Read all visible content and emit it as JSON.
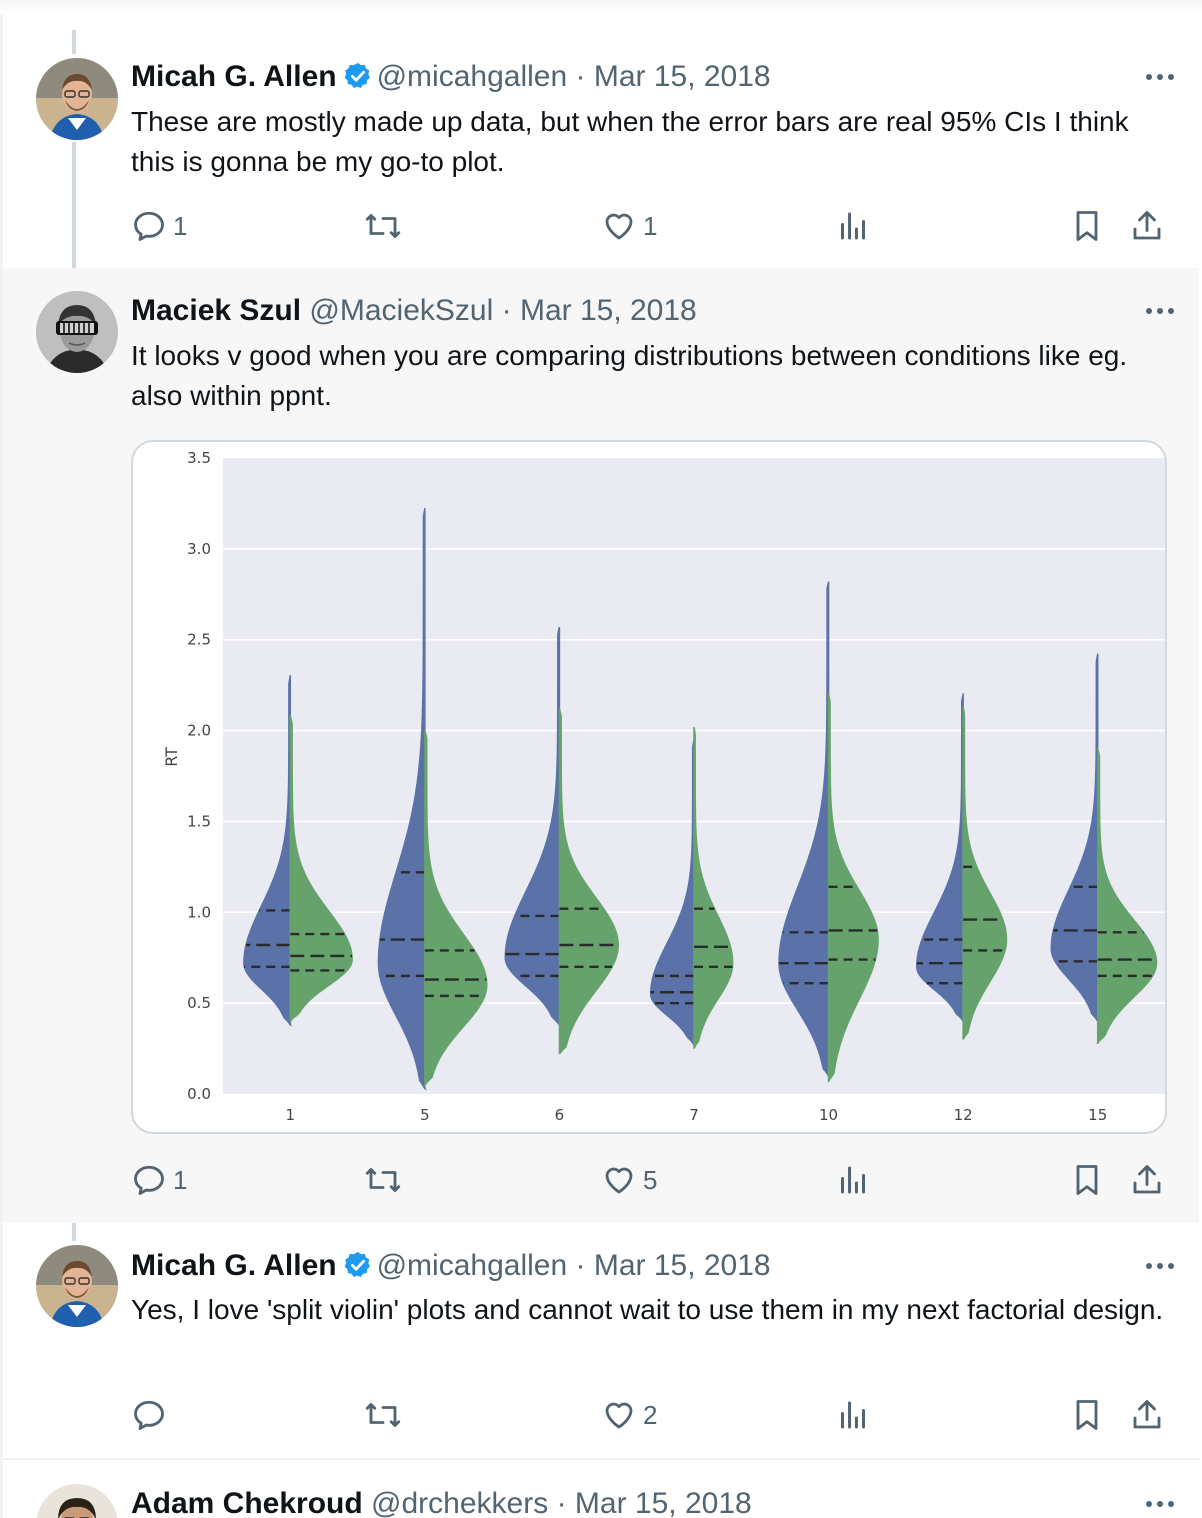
{
  "tweets": [
    {
      "name": "Micah G. Allen",
      "verified": true,
      "handle": "@micahgallen",
      "date": "Mar 15, 2018",
      "text": "These are mostly made up data, but when the error bars are real 95% CIs I think this is gonna be my  go-to plot.",
      "replies": "1",
      "retweets": "",
      "likes": "1"
    },
    {
      "name": "Maciek Szul",
      "verified": false,
      "handle": "@MaciekSzul",
      "date": "Mar 15, 2018",
      "text": "It looks v good when you are comparing distributions between conditions like eg. also within ppnt.",
      "replies": "1",
      "retweets": "",
      "likes": "5"
    },
    {
      "name": "Micah G. Allen",
      "verified": true,
      "handle": "@micahgallen",
      "date": "Mar 15, 2018",
      "text": "Yes, I love 'split violin' plots and cannot wait to use them in my next factorial design.",
      "replies": "",
      "retweets": "",
      "likes": "2"
    },
    {
      "name": "Adam Chekroud",
      "verified": false,
      "handle": "@drchekkers",
      "date": "Mar 15, 2018"
    }
  ],
  "separator": "·",
  "colors": {
    "left_half": "#5a72a8",
    "right_half": "#66a36c",
    "plot_bg": "#eaeaf2",
    "verified": "#1d9bf0"
  },
  "icons": {
    "reply": "reply-icon",
    "retweet": "retweet-icon",
    "like": "heart-icon",
    "views": "views-icon",
    "bookmark": "bookmark-icon",
    "share": "share-icon",
    "more": "more-icon"
  },
  "chart_data": {
    "type": "violin",
    "split": true,
    "ylabel": "RT",
    "xlabel": "",
    "ylim": [
      0,
      3.5
    ],
    "yticks": [
      0.0,
      0.5,
      1.0,
      1.5,
      2.0,
      2.5,
      3.0,
      3.5
    ],
    "ytick_labels": [
      "0.0",
      "0.5",
      "1.0",
      "1.5",
      "2.0",
      "2.5",
      "3.0",
      "3.5"
    ],
    "grid": true,
    "categories": [
      "1",
      "5",
      "6",
      "7",
      "10",
      "12",
      "15"
    ],
    "halves": [
      {
        "side": "left",
        "violins": [
          {
            "min": 0.38,
            "max": 2.3,
            "mode": 0.72,
            "width": 0.3,
            "quartiles": [
              0.7,
              0.82,
              1.01
            ]
          },
          {
            "min": 0.03,
            "max": 3.22,
            "mode": 0.72,
            "width": 0.3,
            "quartiles": [
              0.65,
              0.85,
              1.22
            ]
          },
          {
            "min": 0.38,
            "max": 2.57,
            "mode": 0.75,
            "width": 0.35,
            "quartiles": [
              0.65,
              0.77,
              0.98
            ]
          },
          {
            "min": 0.27,
            "max": 1.95,
            "mode": 0.55,
            "width": 0.28,
            "quartiles": [
              0.5,
              0.56,
              0.65
            ]
          },
          {
            "min": 0.1,
            "max": 2.82,
            "mode": 0.72,
            "width": 0.32,
            "quartiles": [
              0.61,
              0.72,
              0.89
            ]
          },
          {
            "min": 0.4,
            "max": 2.2,
            "mode": 0.7,
            "width": 0.3,
            "quartiles": [
              0.61,
              0.72,
              0.85
            ]
          },
          {
            "min": 0.4,
            "max": 2.42,
            "mode": 0.8,
            "width": 0.3,
            "quartiles": [
              0.73,
              0.9,
              1.14
            ]
          }
        ]
      },
      {
        "side": "right",
        "violins": [
          {
            "min": 0.4,
            "max": 2.08,
            "mode": 0.74,
            "width": 0.4,
            "quartiles": [
              0.68,
              0.76,
              0.88
            ]
          },
          {
            "min": 0.05,
            "max": 2.0,
            "mode": 0.6,
            "width": 0.4,
            "quartiles": [
              0.54,
              0.63,
              0.79
            ]
          },
          {
            "min": 0.22,
            "max": 2.12,
            "mode": 0.82,
            "width": 0.38,
            "quartiles": [
              0.7,
              0.82,
              1.02
            ]
          },
          {
            "min": 0.25,
            "max": 2.02,
            "mode": 0.72,
            "width": 0.25,
            "quartiles": [
              0.7,
              0.81,
              1.02
            ]
          },
          {
            "min": 0.07,
            "max": 2.2,
            "mode": 0.85,
            "width": 0.32,
            "quartiles": [
              0.74,
              0.9,
              1.14
            ]
          },
          {
            "min": 0.3,
            "max": 2.13,
            "mode": 0.85,
            "width": 0.28,
            "quartiles": [
              0.79,
              0.96,
              1.25
            ]
          },
          {
            "min": 0.28,
            "max": 1.9,
            "mode": 0.72,
            "width": 0.38,
            "quartiles": [
              0.65,
              0.74,
              0.89
            ]
          }
        ]
      }
    ]
  }
}
